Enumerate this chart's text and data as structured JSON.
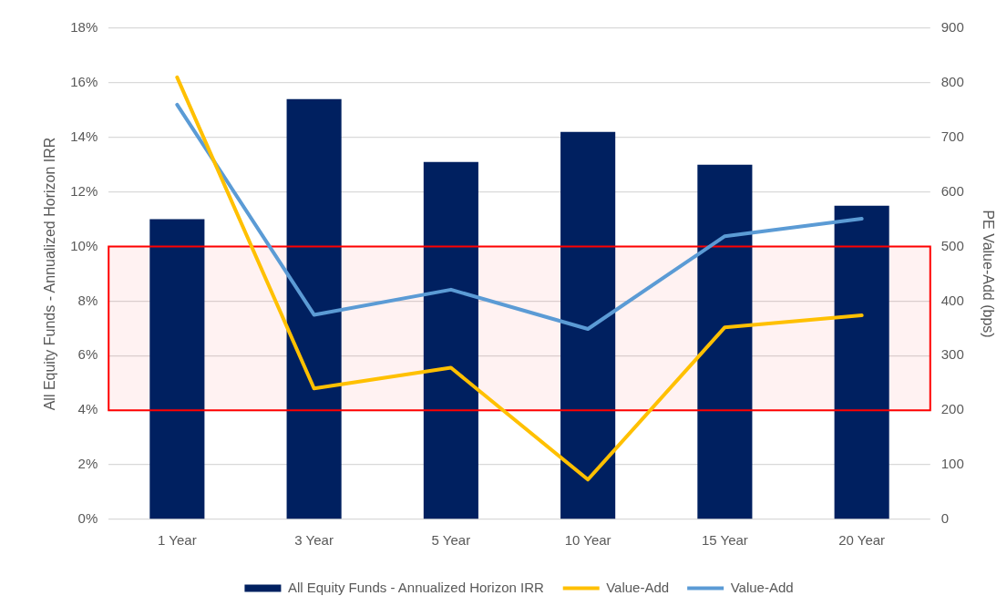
{
  "chart_data": {
    "type": "bar",
    "categories": [
      "1 Year",
      "3 Year",
      "5 Year",
      "10 Year",
      "15 Year",
      "20 Year"
    ],
    "ylabel": "All Equity Funds - Annualized Horizon IRR",
    "y2label": "PE Value-Add (bps)",
    "series": [
      {
        "name": "All Equity Funds - Annualized Horizon IRR",
        "color": "#002060",
        "values": [
          11.0,
          15.4,
          13.1,
          14.2,
          13.0,
          11.5
        ]
      },
      {
        "name": "Value-Add",
        "type": "line",
        "axis": "y2",
        "color": "#ffc000",
        "values": [
          810,
          240,
          278,
          73,
          352,
          374
        ]
      },
      {
        "name": "Value-Add",
        "type": "line",
        "axis": "y2",
        "color": "#5b9bd5",
        "values": [
          760,
          375,
          421,
          349,
          519,
          551
        ]
      }
    ],
    "ylim": [
      0,
      18
    ],
    "yticks": [
      {
        "value": 0,
        "label": "0%"
      },
      {
        "value": 2,
        "label": "2%"
      },
      {
        "value": 4,
        "label": "4%"
      },
      {
        "value": 6,
        "label": "6%"
      },
      {
        "value": 8,
        "label": "8%"
      },
      {
        "value": 10,
        "label": "10%"
      },
      {
        "value": 12,
        "label": "12%"
      },
      {
        "value": 14,
        "label": "14%"
      },
      {
        "value": 16,
        "label": "16%"
      },
      {
        "value": 18,
        "label": "18%"
      }
    ],
    "y2lim": [
      0,
      900
    ],
    "y2ticks": [
      0,
      100,
      200,
      300,
      400,
      500,
      600,
      700,
      800,
      900
    ],
    "grid": "y",
    "legend": "bottom",
    "bands": [
      {
        "axis": "y",
        "from": 4,
        "to": 10,
        "color": "#ff0000"
      }
    ]
  }
}
